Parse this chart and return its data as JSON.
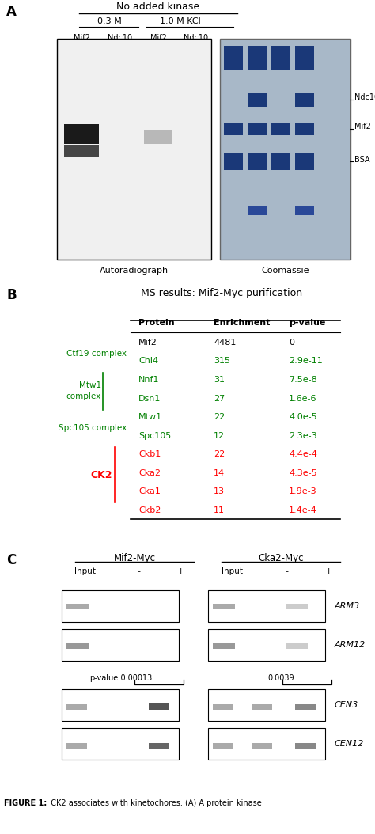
{
  "title_A": "No added kinase",
  "label_03M": "0.3 M",
  "label_10M": "1.0 M KCl",
  "lane_labels": [
    "Mif2",
    "Ndc10",
    "Mif2",
    "Ndc10"
  ],
  "autoradiograph_label": "Autoradiograph",
  "coomassie_label": "Coomassie",
  "title_B": "MS results: Mif2-Myc purification",
  "table_header": [
    "Protein",
    "Enrichment",
    "p-value"
  ],
  "table_rows": [
    [
      "Mif2",
      "4481",
      "0"
    ],
    [
      "Chl4",
      "315",
      "2.9e-11"
    ],
    [
      "Nnf1",
      "31",
      "7.5e-8"
    ],
    [
      "Dsn1",
      "27",
      "1.6e-6"
    ],
    [
      "Mtw1",
      "22",
      "4.0e-5"
    ],
    [
      "Spc105",
      "12",
      "2.3e-3"
    ],
    [
      "Ckb1",
      "22",
      "4.4e-4"
    ],
    [
      "Cka2",
      "14",
      "4.3e-5"
    ],
    [
      "Cka1",
      "13",
      "1.9e-3"
    ],
    [
      "Ckb2",
      "11",
      "1.4e-4"
    ]
  ],
  "row_colors": [
    "black",
    "green",
    "green",
    "green",
    "green",
    "green",
    "red",
    "red",
    "red",
    "red"
  ],
  "group1_label": "Mif2-Myc",
  "group2_label": "Cka2-Myc",
  "pvalue1": "p-value:0.00013",
  "pvalue2": "0.0039",
  "figure_caption": "FIGURE 1:  CK2 associates with kinetochores. (A) A protein kinase"
}
